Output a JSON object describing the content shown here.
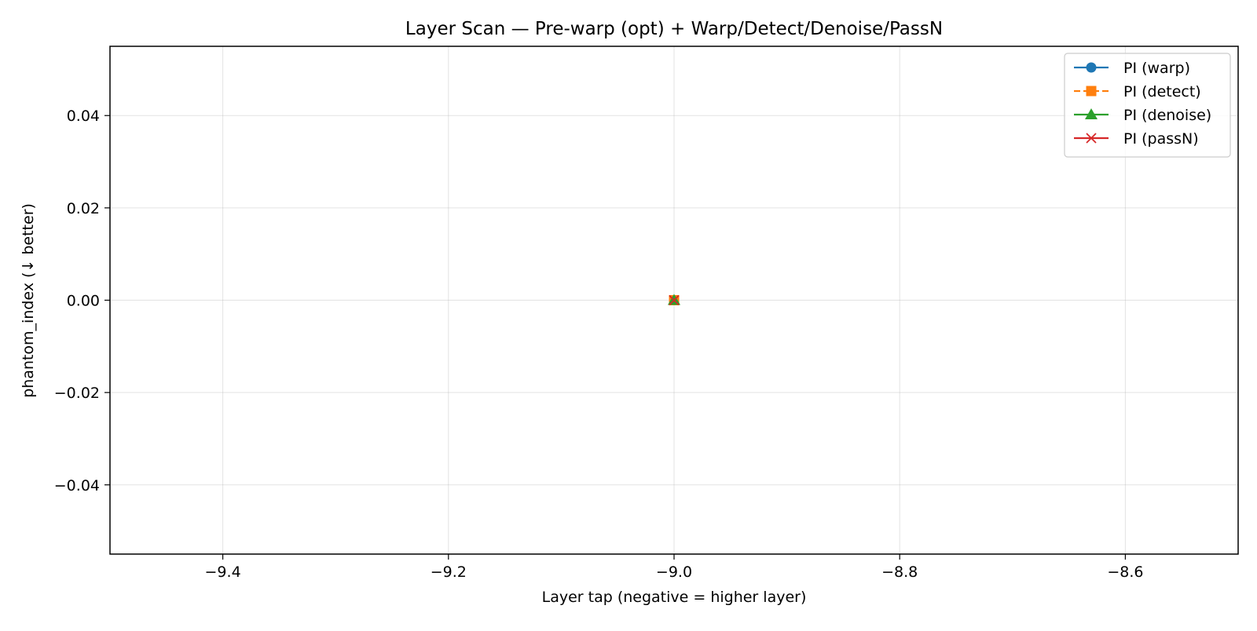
{
  "chart_data": {
    "type": "line",
    "title": "Layer Scan — Pre-warp (opt) + Warp/Detect/Denoise/PassN",
    "xlabel": "Layer tap (negative = higher layer)",
    "ylabel": "phantom_index (↓ better)",
    "xlim": [
      -9.5,
      -8.5
    ],
    "ylim": [
      -0.055,
      0.055
    ],
    "xticks": [
      -9.4,
      -9.2,
      -9.0,
      -8.8,
      -8.6
    ],
    "xtick_labels": [
      "−9.4",
      "−9.2",
      "−9.0",
      "−8.8",
      "−8.6"
    ],
    "yticks": [
      0.04,
      0.02,
      0.0,
      -0.02,
      -0.04
    ],
    "ytick_labels": [
      "0.04",
      "0.02",
      "0.00",
      "−0.02",
      "−0.04"
    ],
    "grid": true,
    "legend_position": "top-right",
    "series": [
      {
        "name": "PI (warp)",
        "x": [
          -9.0
        ],
        "y": [
          0.0
        ],
        "color": "#1f77b4",
        "marker": "circle",
        "linestyle": "solid"
      },
      {
        "name": "PI (detect)",
        "x": [
          -9.0
        ],
        "y": [
          0.0
        ],
        "color": "#ff7f0e",
        "marker": "square",
        "linestyle": "dashed"
      },
      {
        "name": "PI (denoise)",
        "x": [
          -9.0
        ],
        "y": [
          0.0
        ],
        "color": "#2ca02c",
        "marker": "triangle",
        "linestyle": "solid"
      },
      {
        "name": "PI (passN)",
        "x": [
          -9.0
        ],
        "y": [
          0.0
        ],
        "color": "#d62728",
        "marker": "x",
        "linestyle": "solid"
      }
    ]
  }
}
